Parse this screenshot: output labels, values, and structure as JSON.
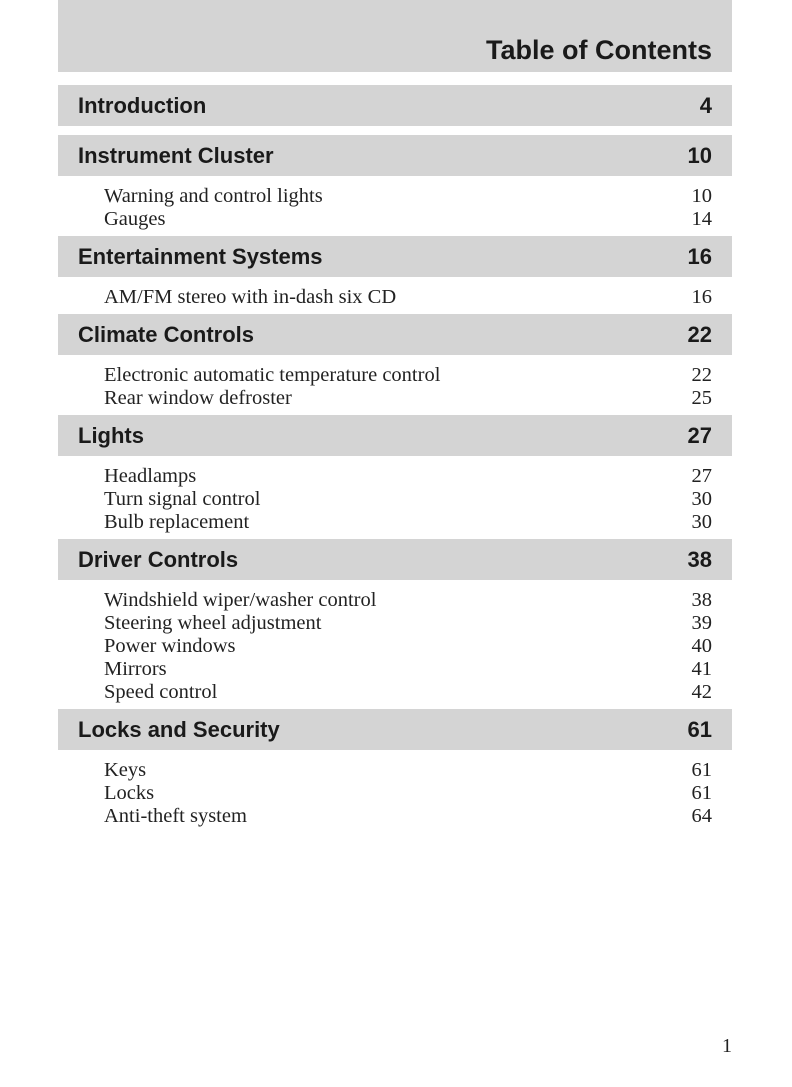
{
  "title": "Table of Contents",
  "sections": [
    {
      "title": "Introduction",
      "page": "4",
      "items": []
    },
    {
      "title": "Instrument Cluster",
      "page": "10",
      "items": [
        {
          "title": "Warning and control lights",
          "page": "10"
        },
        {
          "title": "Gauges",
          "page": "14"
        }
      ]
    },
    {
      "title": "Entertainment Systems",
      "page": "16",
      "items": [
        {
          "title": "AM/FM stereo with in-dash six CD",
          "page": "16"
        }
      ]
    },
    {
      "title": "Climate Controls",
      "page": "22",
      "items": [
        {
          "title": "Electronic automatic temperature control",
          "page": "22"
        },
        {
          "title": "Rear window defroster",
          "page": "25"
        }
      ]
    },
    {
      "title": "Lights",
      "page": "27",
      "items": [
        {
          "title": "Headlamps",
          "page": "27"
        },
        {
          "title": "Turn signal control",
          "page": "30"
        },
        {
          "title": "Bulb replacement",
          "page": "30"
        }
      ]
    },
    {
      "title": "Driver Controls",
      "page": "38",
      "items": [
        {
          "title": "Windshield wiper/washer control",
          "page": "38"
        },
        {
          "title": "Steering wheel adjustment",
          "page": "39"
        },
        {
          "title": "Power windows",
          "page": "40"
        },
        {
          "title": "Mirrors",
          "page": "41"
        },
        {
          "title": "Speed control",
          "page": "42"
        }
      ]
    },
    {
      "title": "Locks and Security",
      "page": "61",
      "items": [
        {
          "title": "Keys",
          "page": "61"
        },
        {
          "title": "Locks",
          "page": "61"
        },
        {
          "title": "Anti-theft system",
          "page": "64"
        }
      ]
    }
  ],
  "page_number": "1",
  "colors": {
    "band": "#d4d4d4",
    "text": "#1a1a1a"
  }
}
